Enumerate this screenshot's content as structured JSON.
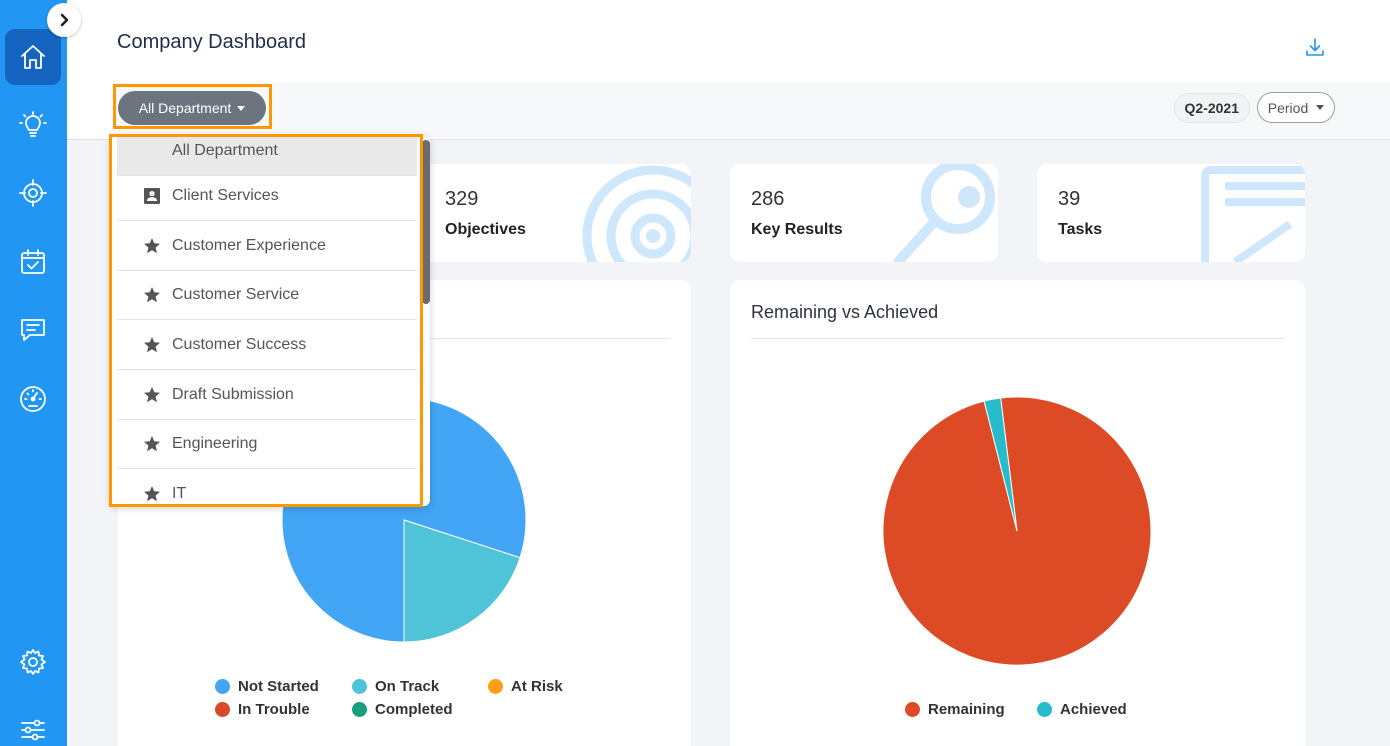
{
  "sidebar": {
    "nav": [
      {
        "icon": "home-icon"
      },
      {
        "icon": "lightbulb-icon"
      },
      {
        "icon": "target-icon"
      },
      {
        "icon": "calendar-check-icon"
      },
      {
        "icon": "comment-icon"
      },
      {
        "icon": "gauge-icon"
      },
      {
        "icon": "gear-icon"
      },
      {
        "icon": "sliders-icon"
      }
    ],
    "collapse_icon": "chevron-right-icon"
  },
  "header": {
    "title": "Company Dashboard",
    "download_icon": "download-icon",
    "department_filter": "All Department",
    "quarter": "Q2-2021",
    "period_label": "Period"
  },
  "stats": [
    {
      "value": "329",
      "label": "Objectives",
      "icon": "target-icon"
    },
    {
      "value": "286",
      "label": "Key Results",
      "icon": "key-icon"
    },
    {
      "value": "39",
      "label": "Tasks",
      "icon": "task-icon"
    }
  ],
  "dropdown": {
    "items": [
      {
        "label": "All Department",
        "icon": "",
        "selected": true
      },
      {
        "label": "Client Services",
        "icon": "contact-card-icon"
      },
      {
        "label": "Customer Experience",
        "icon": "star-icon"
      },
      {
        "label": "Customer Service",
        "icon": "star-icon"
      },
      {
        "label": "Customer Success",
        "icon": "star-icon"
      },
      {
        "label": "Draft Submission",
        "icon": "star-icon"
      },
      {
        "label": "Engineering",
        "icon": "star-icon"
      },
      {
        "label": "IT",
        "icon": "star-icon"
      }
    ]
  },
  "chart_data": [
    {
      "type": "pie",
      "title": "",
      "categories": [
        "Not Started",
        "On Track",
        "At Risk",
        "In Trouble",
        "Completed"
      ],
      "values": [
        80,
        20,
        0,
        0,
        0
      ],
      "colors": [
        "#42a5f5",
        "#4fc3d7",
        "#ff9f1a",
        "#d84a2b",
        "#1a9e7c"
      ],
      "legend": "bottom"
    },
    {
      "type": "pie",
      "title": "Remaining vs Achieved",
      "categories": [
        "Remaining",
        "Achieved"
      ],
      "values": [
        98,
        2
      ],
      "colors": [
        "#dd4a26",
        "#26bccb"
      ],
      "legend": "bottom"
    }
  ]
}
